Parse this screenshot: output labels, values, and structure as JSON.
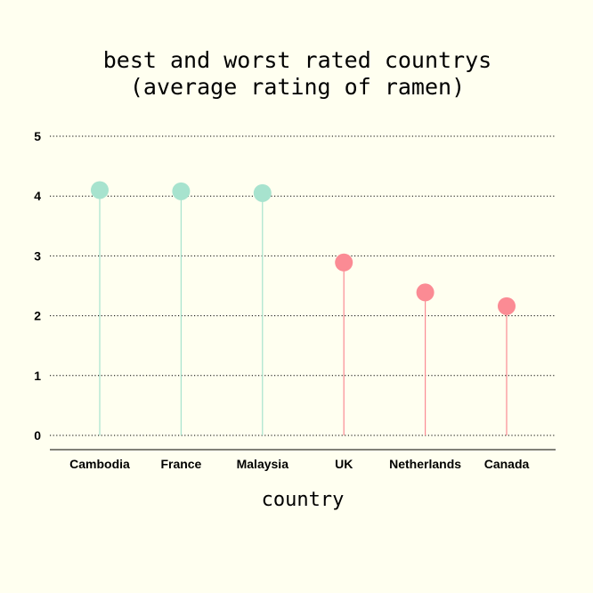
{
  "chart_data": {
    "type": "lollipop",
    "title_lines": [
      "best and worst rated countrys",
      "(average rating of ramen)"
    ],
    "xlabel": "country",
    "ylabel": "",
    "categories": [
      "Cambodia",
      "France",
      "Malaysia",
      "UK",
      "Netherlands",
      "Canada"
    ],
    "values": [
      4.1,
      4.08,
      4.05,
      2.89,
      2.39,
      2.16
    ],
    "groups": [
      "best",
      "best",
      "best",
      "worst",
      "worst",
      "worst"
    ],
    "colors": {
      "best": "#a7e3ce",
      "worst": "#fb8b94",
      "background": "#fffff0"
    },
    "yticks": [
      0,
      1,
      2,
      3,
      4,
      5
    ],
    "ylim": [
      0,
      5
    ],
    "grid": "horizontal dotted",
    "legend": "none"
  }
}
